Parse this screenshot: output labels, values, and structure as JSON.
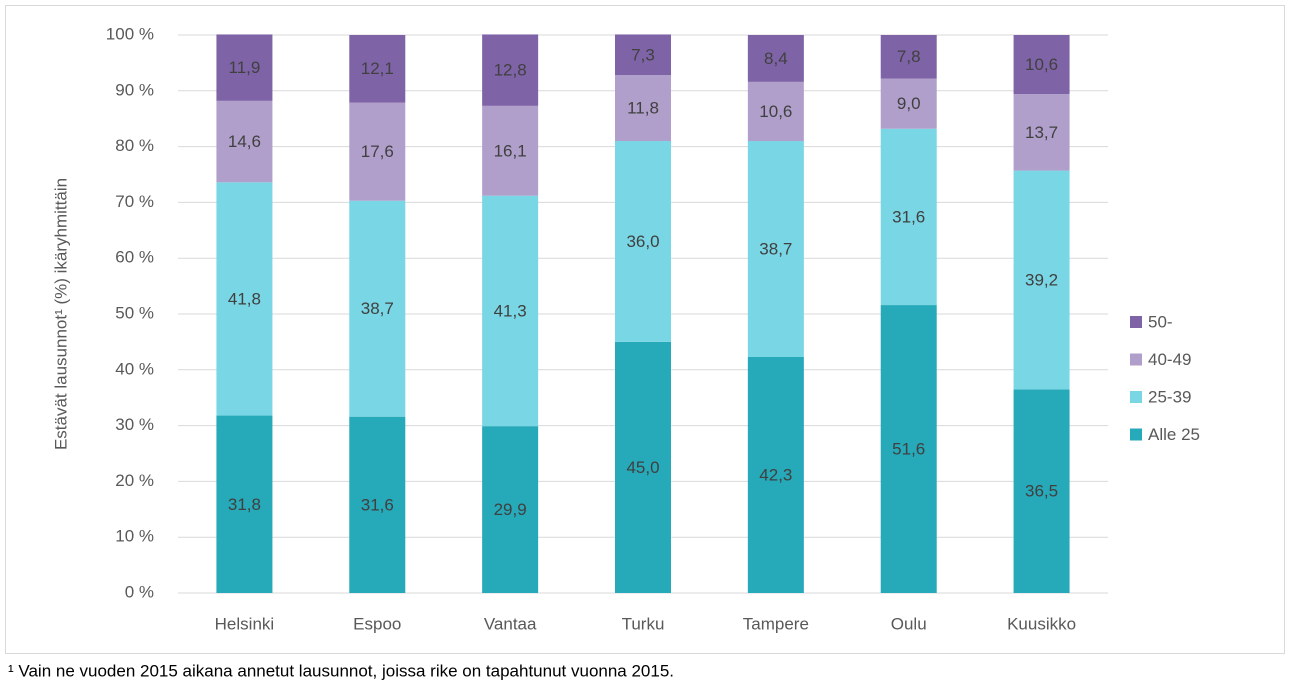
{
  "chart_data": {
    "type": "stacked_bar",
    "y_label": "Estävät lausunnot¹ (%) ikäryhmittäin",
    "footnote": "¹ Vain ne vuoden 2015 aikana annetut lausunnot, joissa rike on tapahtunut vuonna 2015.",
    "categories": [
      "Helsinki",
      "Espoo",
      "Vantaa",
      "Turku",
      "Tampere",
      "Oulu",
      "Kuusikko"
    ],
    "series": [
      {
        "name": "Alle 25",
        "color": "#26a9b8",
        "values": [
          31.8,
          31.6,
          29.9,
          45.0,
          42.3,
          51.6,
          36.5
        ],
        "value_labels": [
          "31,8",
          "31,6",
          "29,9",
          "45,0",
          "42,3",
          "51,6",
          "36,5"
        ]
      },
      {
        "name": "25-39",
        "color": "#79d6e4",
        "values": [
          41.8,
          38.7,
          41.3,
          36.0,
          38.7,
          31.6,
          39.2
        ],
        "value_labels": [
          "41,8",
          "38,7",
          "41,3",
          "36,0",
          "38,7",
          "31,6",
          "39,2"
        ]
      },
      {
        "name": "40-49",
        "color": "#b09fca",
        "values": [
          14.6,
          17.6,
          16.1,
          11.8,
          10.6,
          9.0,
          13.7
        ],
        "value_labels": [
          "14,6",
          "17,6",
          "16,1",
          "11,8",
          "10,6",
          "9,0",
          "13,7"
        ]
      },
      {
        "name": "50-",
        "color": "#7f63a7",
        "values": [
          11.9,
          12.1,
          12.8,
          7.3,
          8.4,
          7.8,
          10.6
        ],
        "value_labels": [
          "11,9",
          "12,1",
          "12,8",
          "7,3",
          "8,4",
          "7,8",
          "10,6"
        ]
      }
    ],
    "ylim": [
      0,
      100
    ],
    "yticks": [
      {
        "value": 0,
        "label": "0 %"
      },
      {
        "value": 10,
        "label": "10 %"
      },
      {
        "value": 20,
        "label": "20 %"
      },
      {
        "value": 30,
        "label": "30 %"
      },
      {
        "value": 40,
        "label": "40 %"
      },
      {
        "value": 50,
        "label": "50 %"
      },
      {
        "value": 60,
        "label": "60 %"
      },
      {
        "value": 70,
        "label": "70 %"
      },
      {
        "value": 80,
        "label": "80 %"
      },
      {
        "value": 90,
        "label": "90 %"
      },
      {
        "value": 100,
        "label": "100 %"
      }
    ],
    "grid": true,
    "legend": "right"
  }
}
